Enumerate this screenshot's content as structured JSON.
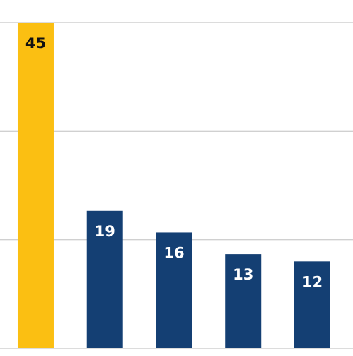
{
  "chart_data": {
    "type": "bar",
    "categories": [
      null,
      null,
      null,
      null,
      null
    ],
    "values": [
      45,
      19,
      16,
      13,
      12
    ],
    "colors": [
      "#fbbf12",
      "#143f73",
      "#143f73",
      "#143f73",
      "#143f73"
    ],
    "label_colors": [
      "#111111",
      "#ffffff",
      "#ffffff",
      "#ffffff",
      "#ffffff"
    ],
    "ylim": [
      0,
      45
    ],
    "yticks": [
      0,
      15,
      30,
      45
    ],
    "grid": true
  }
}
